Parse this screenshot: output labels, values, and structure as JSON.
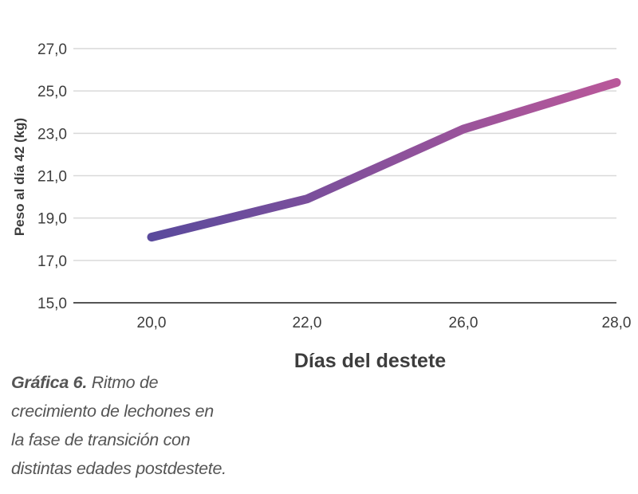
{
  "chart_data": {
    "type": "line",
    "x_categories": [
      "20,0",
      "22,0",
      "26,0",
      "28,0"
    ],
    "series": [
      {
        "values": [
          18.1,
          19.9,
          23.2,
          25.4
        ]
      }
    ],
    "yticks": [
      "15,0",
      "17,0",
      "19,0",
      "21,0",
      "23,0",
      "25,0",
      "27,0"
    ],
    "ylim": [
      15,
      27
    ],
    "xlabel": "Días del destete",
    "ylabel": "Peso al día 42 (kg)",
    "grid": "horizontal",
    "line_gradient": [
      "#5a4a9c",
      "#b9589a"
    ]
  },
  "caption": {
    "label": "Gráfica 6.",
    "text": "Ritmo de crecimiento de lechones en la fase de transición con distintas edades postdestete."
  }
}
